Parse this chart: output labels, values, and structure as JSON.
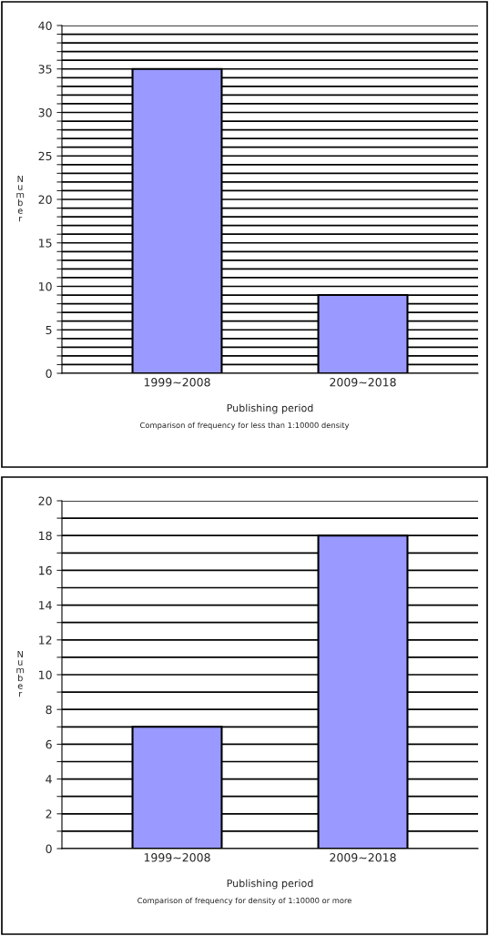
{
  "chart_data": [
    {
      "type": "bar",
      "categories": [
        "1999~2008",
        "2009~2018"
      ],
      "values": [
        35,
        9
      ],
      "color": "#9999ff",
      "xlabel": "Publishing period",
      "ylabel": "Number",
      "ylim": [
        0,
        40
      ],
      "yticks": [
        0,
        {
          "value": 1,
          "label": null
        },
        {
          "value": 2,
          "label": null
        },
        {
          "value": 3,
          "label": null
        },
        {
          "value": 4,
          "label": null
        },
        5,
        {
          "value": 6,
          "label": null
        },
        {
          "value": 7,
          "label": null
        },
        {
          "value": 8,
          "label": null
        },
        {
          "value": 9,
          "label": null
        },
        10,
        {
          "value": 11,
          "label": null
        },
        {
          "value": 12,
          "label": null
        },
        {
          "value": 13,
          "label": null
        },
        {
          "value": 14,
          "label": null
        },
        15,
        {
          "value": 16,
          "label": null
        },
        {
          "value": 17,
          "label": null
        },
        {
          "value": 18,
          "label": null
        },
        {
          "value": 19,
          "label": null
        },
        20,
        {
          "value": 21,
          "label": null
        },
        {
          "value": 22,
          "label": null
        },
        {
          "value": 23,
          "label": null
        },
        {
          "value": 24,
          "label": null
        },
        25,
        {
          "value": 26,
          "label": null
        },
        {
          "value": 27,
          "label": null
        },
        {
          "value": 28,
          "label": null
        },
        {
          "value": 29,
          "label": null
        },
        30,
        {
          "value": 31,
          "label": null
        },
        {
          "value": 32,
          "label": null
        },
        {
          "value": 33,
          "label": null
        },
        {
          "value": 34,
          "label": null
        },
        35,
        {
          "value": 36,
          "label": null
        },
        {
          "value": 37,
          "label": null
        },
        {
          "value": 38,
          "label": null
        },
        {
          "value": 39,
          "label": null
        },
        40
      ],
      "grid": "y",
      "annotations": [
        "Comparison of frequency for less than 1:10000 density"
      ]
    },
    {
      "type": "bar",
      "categories": [
        "1999~2008",
        "2009~2018"
      ],
      "values": [
        7,
        18
      ],
      "color": "#9999ff",
      "xlabel": "Publishing period",
      "ylabel": "Number",
      "ylim": [
        0,
        20
      ],
      "yticks": [
        0,
        {
          "value": 1,
          "label": null
        },
        2,
        {
          "value": 3,
          "label": null
        },
        4,
        {
          "value": 5,
          "label": null
        },
        6,
        {
          "value": 7,
          "label": null
        },
        8,
        {
          "value": 9,
          "label": null
        },
        10,
        {
          "value": 11,
          "label": null
        },
        12,
        {
          "value": 13,
          "label": null
        },
        14,
        {
          "value": 15,
          "label": null
        },
        16,
        {
          "value": 17,
          "label": null
        },
        18,
        {
          "value": 19,
          "label": null
        },
        20
      ],
      "grid": "y",
      "annotations": [
        "Comparison of frequency for density of 1:10000 or more"
      ]
    }
  ]
}
